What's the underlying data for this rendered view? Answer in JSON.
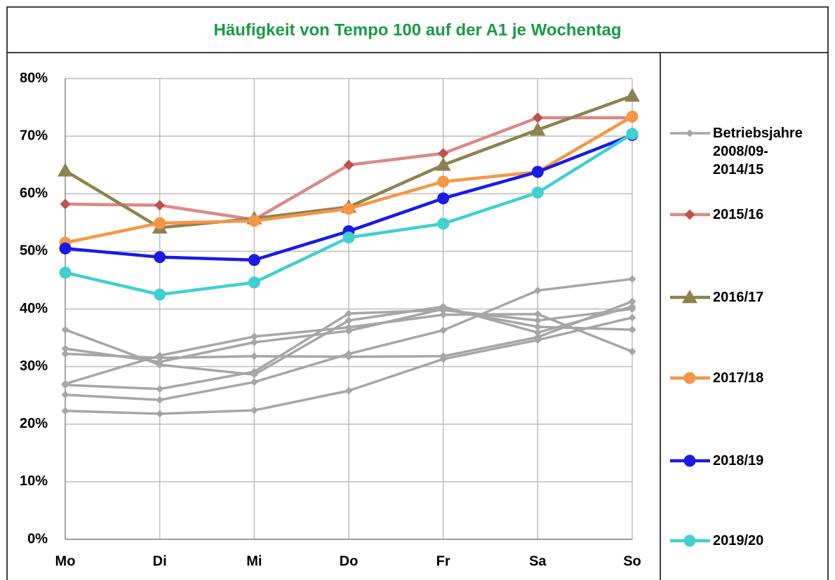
{
  "chart_data": {
    "type": "line",
    "title": "Häufigkeit von Tempo 100 auf der A1 je Wochentag",
    "categories": [
      "Mo",
      "Di",
      "Mi",
      "Do",
      "Fr",
      "Sa",
      "So"
    ],
    "ylim": [
      0,
      80
    ],
    "yticks": [
      {
        "value": 0,
        "label": "0%"
      },
      {
        "value": 10,
        "label": "10%"
      },
      {
        "value": 20,
        "label": "20%"
      },
      {
        "value": 30,
        "label": "30%"
      },
      {
        "value": 40,
        "label": "40%"
      },
      {
        "value": 50,
        "label": "50%"
      },
      {
        "value": 60,
        "label": "60%"
      },
      {
        "value": 70,
        "label": "70%"
      },
      {
        "value": 80,
        "label": "80%"
      }
    ],
    "grid": true,
    "legend": "right",
    "series": [
      {
        "name": "Betriebsjahre 2008/09-2014/15",
        "color": "#a6a6a6",
        "marker": "diamond",
        "lines": [
          [
            36.4,
            30.3,
            28.6,
            38.0,
            40.4,
            35.9,
            40.4
          ],
          [
            33.1,
            30.8,
            34.2,
            36.2,
            40.0,
            36.9,
            36.4
          ],
          [
            32.2,
            31.5,
            31.8,
            31.7,
            31.8,
            35.1,
            41.3
          ],
          [
            27.0,
            31.9,
            35.2,
            36.8,
            39.0,
            39.1,
            32.6
          ],
          [
            26.8,
            26.1,
            29.1,
            39.2,
            39.8,
            38.0,
            40.0
          ],
          [
            25.1,
            24.2,
            27.3,
            32.2,
            36.3,
            43.2,
            45.2
          ],
          [
            22.3,
            21.8,
            22.4,
            25.8,
            31.3,
            34.6,
            38.5
          ]
        ]
      },
      {
        "name": "2015/16",
        "color": "#d98a88",
        "marker_color": "#c0504d",
        "marker": "diamond",
        "values": [
          58.2,
          58.0,
          55.5,
          65.0,
          67.0,
          73.2,
          73.2
        ]
      },
      {
        "name": "2016/17",
        "color": "#8c8350",
        "marker": "triangle",
        "values": [
          64.0,
          54.1,
          55.7,
          57.7,
          65.0,
          71.1,
          77.0
        ]
      },
      {
        "name": "2017/18",
        "color": "#f79646",
        "marker": "circle",
        "values": [
          51.5,
          54.9,
          55.3,
          57.4,
          62.1,
          63.8,
          73.4
        ]
      },
      {
        "name": "2018/19",
        "color": "#1a1ae6",
        "marker": "circle",
        "values": [
          50.5,
          49.0,
          48.5,
          53.5,
          59.2,
          63.8,
          70.2
        ]
      },
      {
        "name": "2019/20",
        "color": "#40d0d0",
        "marker": "circle",
        "values": [
          46.3,
          42.5,
          44.6,
          52.4,
          54.8,
          60.2,
          70.4
        ]
      }
    ]
  }
}
